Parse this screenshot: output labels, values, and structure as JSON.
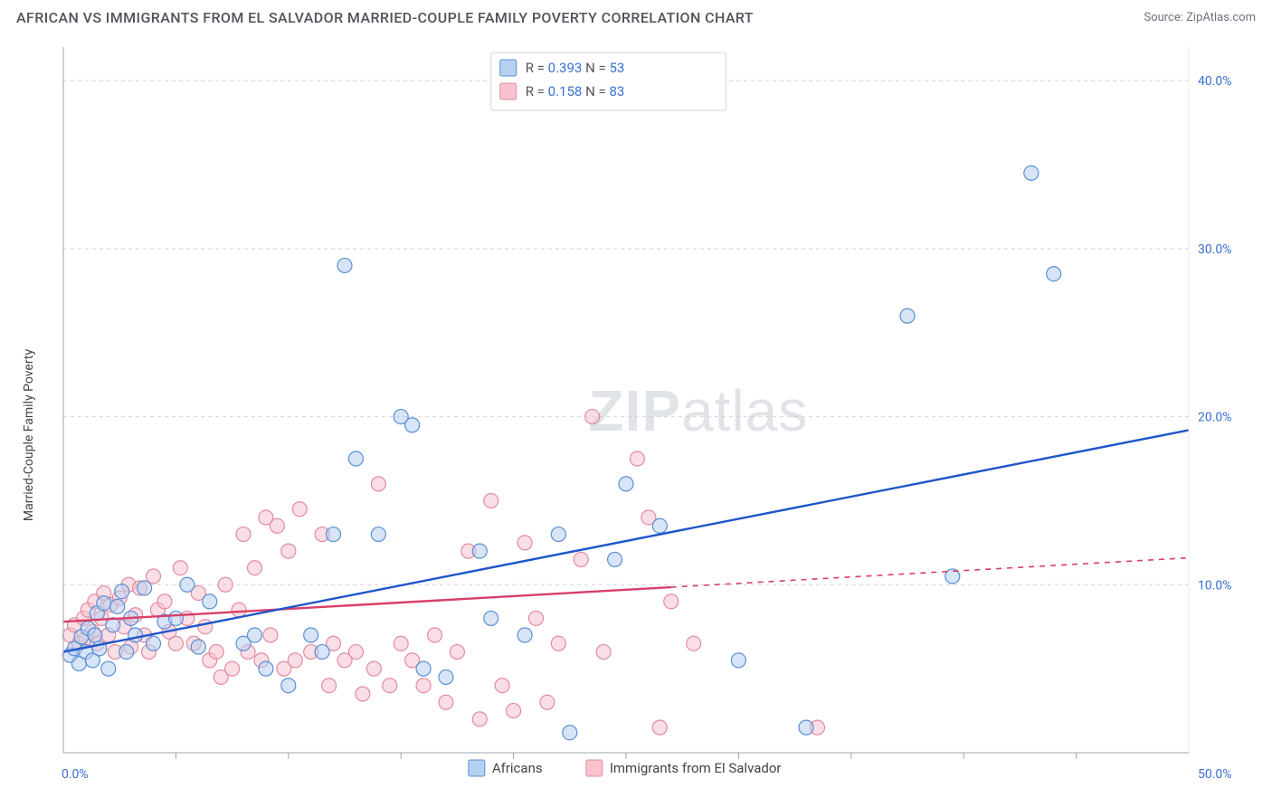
{
  "title": "AFRICAN VS IMMIGRANTS FROM EL SALVADOR MARRIED-COUPLE FAMILY POVERTY CORRELATION CHART",
  "source": "Source: ZipAtlas.com",
  "ylabel": "Married-Couple Family Poverty",
  "watermark_a": "ZIP",
  "watermark_b": "atlas",
  "colors": {
    "blue_fill": "#b6d0f0",
    "blue_stroke": "#5b8fd6",
    "blue_line": "#1e56c9",
    "pink_fill": "#f6c3cf",
    "pink_stroke": "#e38ba0",
    "pink_line": "#d83f68",
    "grid": "#d4d4d8",
    "axis": "#9ca3af",
    "tick_text": "#3b6fd6",
    "title_text": "#52525b",
    "source_text": "#6b7280",
    "bg": "#ffffff"
  },
  "chart": {
    "type": "scatter",
    "xlim": [
      0,
      50
    ],
    "ylim": [
      0,
      42
    ],
    "y_ticks": [
      10,
      20,
      30,
      40
    ],
    "y_tick_labels": [
      "10.0%",
      "20.0%",
      "30.0%",
      "40.0%"
    ],
    "x_origin_label": "0.0%",
    "x_end_label": "50.0%",
    "x_minor_ticks": [
      5,
      10,
      15,
      20,
      25,
      30,
      35,
      40,
      45
    ],
    "point_radius": 8,
    "point_opacity": 0.55,
    "trend_line_width": 2.4
  },
  "legend_box": {
    "series": [
      {
        "swatch": "blue",
        "r_label": "R = ",
        "r_value": "0.393",
        "n_label": "N = ",
        "n_value": "53"
      },
      {
        "swatch": "pink",
        "r_label": "R = ",
        "r_value": "0.158",
        "n_label": "N = ",
        "n_value": "83"
      }
    ]
  },
  "bottom_legend": {
    "series": [
      {
        "swatch": "blue",
        "label": "Africans"
      },
      {
        "swatch": "pink",
        "label": "Immigrants from El Salvador"
      }
    ]
  },
  "trend_lines": {
    "blue": {
      "x1": 0,
      "y1": 6.0,
      "x2": 50,
      "y2": 19.2,
      "solid_until_x": 50
    },
    "pink": {
      "x1": 0,
      "y1": 7.8,
      "x2": 50,
      "y2": 11.6,
      "solid_until_x": 27
    }
  },
  "points_blue": [
    [
      0.3,
      5.8
    ],
    [
      0.5,
      6.2
    ],
    [
      0.7,
      5.3
    ],
    [
      0.8,
      6.9
    ],
    [
      1.0,
      6.0
    ],
    [
      1.1,
      7.4
    ],
    [
      1.3,
      5.5
    ],
    [
      1.4,
      7.0
    ],
    [
      1.5,
      8.3
    ],
    [
      1.6,
      6.2
    ],
    [
      1.8,
      8.9
    ],
    [
      2.0,
      5.0
    ],
    [
      2.2,
      7.6
    ],
    [
      2.4,
      8.7
    ],
    [
      2.6,
      9.6
    ],
    [
      2.8,
      6.0
    ],
    [
      3.0,
      8.0
    ],
    [
      3.2,
      7.0
    ],
    [
      3.6,
      9.8
    ],
    [
      4.0,
      6.5
    ],
    [
      4.5,
      7.8
    ],
    [
      5.0,
      8.0
    ],
    [
      5.5,
      10.0
    ],
    [
      6.0,
      6.3
    ],
    [
      6.5,
      9.0
    ],
    [
      8.0,
      6.5
    ],
    [
      8.5,
      7.0
    ],
    [
      9.0,
      5.0
    ],
    [
      10.0,
      4.0
    ],
    [
      11.0,
      7.0
    ],
    [
      11.5,
      6.0
    ],
    [
      12.0,
      13.0
    ],
    [
      12.5,
      29.0
    ],
    [
      13.0,
      17.5
    ],
    [
      14.0,
      13.0
    ],
    [
      15.0,
      20.0
    ],
    [
      15.5,
      19.5
    ],
    [
      16.0,
      5.0
    ],
    [
      17.0,
      4.5
    ],
    [
      18.5,
      12.0
    ],
    [
      19.0,
      8.0
    ],
    [
      20.5,
      7.0
    ],
    [
      22.0,
      13.0
    ],
    [
      22.5,
      1.2
    ],
    [
      24.5,
      11.5
    ],
    [
      25.0,
      16.0
    ],
    [
      26.5,
      13.5
    ],
    [
      30.0,
      5.5
    ],
    [
      33.0,
      1.5
    ],
    [
      37.5,
      26.0
    ],
    [
      39.5,
      10.5
    ],
    [
      43.0,
      34.5
    ],
    [
      44.0,
      28.5
    ]
  ],
  "points_pink": [
    [
      0.3,
      7.0
    ],
    [
      0.5,
      7.6
    ],
    [
      0.7,
      6.5
    ],
    [
      0.9,
      8.0
    ],
    [
      1.0,
      6.8
    ],
    [
      1.1,
      8.5
    ],
    [
      1.3,
      7.2
    ],
    [
      1.4,
      9.0
    ],
    [
      1.5,
      6.5
    ],
    [
      1.7,
      8.0
    ],
    [
      1.8,
      9.5
    ],
    [
      2.0,
      7.0
    ],
    [
      2.1,
      8.8
    ],
    [
      2.3,
      6.0
    ],
    [
      2.5,
      9.2
    ],
    [
      2.7,
      7.5
    ],
    [
      2.9,
      10.0
    ],
    [
      3.0,
      6.3
    ],
    [
      3.2,
      8.2
    ],
    [
      3.4,
      9.8
    ],
    [
      3.6,
      7.0
    ],
    [
      3.8,
      6.0
    ],
    [
      4.0,
      10.5
    ],
    [
      4.2,
      8.5
    ],
    [
      4.5,
      9.0
    ],
    [
      4.7,
      7.2
    ],
    [
      5.0,
      6.5
    ],
    [
      5.2,
      11.0
    ],
    [
      5.5,
      8.0
    ],
    [
      5.8,
      6.5
    ],
    [
      6.0,
      9.5
    ],
    [
      6.3,
      7.5
    ],
    [
      6.5,
      5.5
    ],
    [
      6.8,
      6.0
    ],
    [
      7.0,
      4.5
    ],
    [
      7.2,
      10.0
    ],
    [
      7.5,
      5.0
    ],
    [
      7.8,
      8.5
    ],
    [
      8.0,
      13.0
    ],
    [
      8.2,
      6.0
    ],
    [
      8.5,
      11.0
    ],
    [
      8.8,
      5.5
    ],
    [
      9.0,
      14.0
    ],
    [
      9.2,
      7.0
    ],
    [
      9.5,
      13.5
    ],
    [
      9.8,
      5.0
    ],
    [
      10.0,
      12.0
    ],
    [
      10.3,
      5.5
    ],
    [
      10.5,
      14.5
    ],
    [
      11.0,
      6.0
    ],
    [
      11.5,
      13.0
    ],
    [
      11.8,
      4.0
    ],
    [
      12.0,
      6.5
    ],
    [
      12.5,
      5.5
    ],
    [
      13.0,
      6.0
    ],
    [
      13.3,
      3.5
    ],
    [
      13.8,
      5.0
    ],
    [
      14.0,
      16.0
    ],
    [
      14.5,
      4.0
    ],
    [
      15.0,
      6.5
    ],
    [
      15.5,
      5.5
    ],
    [
      16.0,
      4.0
    ],
    [
      16.5,
      7.0
    ],
    [
      17.0,
      3.0
    ],
    [
      17.5,
      6.0
    ],
    [
      18.0,
      12.0
    ],
    [
      18.5,
      2.0
    ],
    [
      19.0,
      15.0
    ],
    [
      19.5,
      4.0
    ],
    [
      20.0,
      2.5
    ],
    [
      20.5,
      12.5
    ],
    [
      21.0,
      8.0
    ],
    [
      21.5,
      3.0
    ],
    [
      22.0,
      6.5
    ],
    [
      23.0,
      11.5
    ],
    [
      23.5,
      20.0
    ],
    [
      24.0,
      6.0
    ],
    [
      25.5,
      17.5
    ],
    [
      26.0,
      14.0
    ],
    [
      26.5,
      1.5
    ],
    [
      27.0,
      9.0
    ],
    [
      28.0,
      6.5
    ],
    [
      33.5,
      1.5
    ]
  ]
}
